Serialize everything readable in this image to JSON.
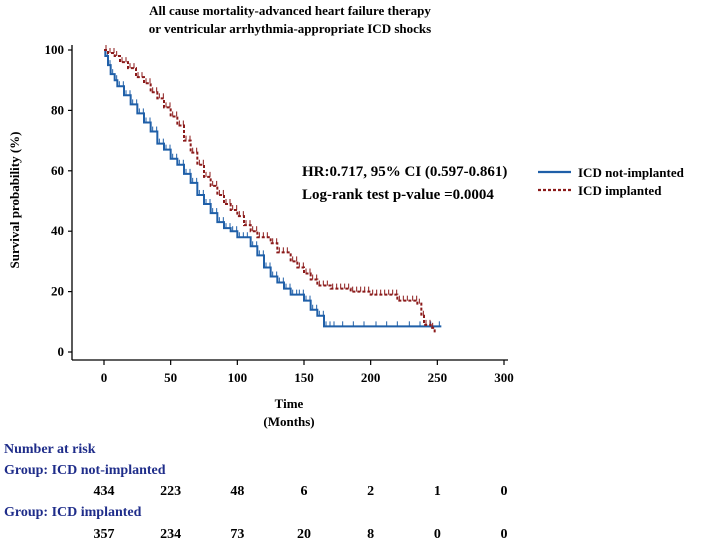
{
  "chart_data": {
    "type": "line",
    "title": "All cause mortality-advanced heart failure therapy",
    "subtitle": "or ventricular arrhythmia-appropriate ICD shocks",
    "xlabel": "Time",
    "xlabel_unit": "(Months)",
    "ylabel": "Survival probability (%)",
    "xlim": [
      0,
      300
    ],
    "ylim": [
      0,
      100
    ],
    "x_ticks": [
      "0",
      "50",
      "100",
      "150",
      "200",
      "250",
      "300"
    ],
    "y_ticks": [
      "0",
      "20",
      "40",
      "60",
      "80",
      "100"
    ],
    "grid": false,
    "legend_position": "right",
    "annotations": {
      "hr": "HR:0.717, 95% CI (0.597-0.861)",
      "logrank": "Log-rank test p-value =0.0004"
    },
    "series": [
      {
        "name": "ICD not-implanted",
        "color": "#1f5fa8",
        "style": "solid",
        "x": [
          0,
          1,
          3,
          5,
          8,
          10,
          15,
          20,
          25,
          30,
          35,
          40,
          45,
          50,
          55,
          60,
          65,
          70,
          75,
          80,
          85,
          90,
          95,
          100,
          110,
          115,
          120,
          125,
          130,
          135,
          140,
          145,
          150,
          155,
          160,
          165,
          175,
          200,
          225,
          250,
          253
        ],
        "y": [
          100,
          98,
          95,
          92,
          90,
          88,
          85,
          82,
          79,
          76,
          73,
          69,
          67,
          64,
          62,
          59,
          56,
          52,
          49,
          46,
          43,
          41,
          40,
          38,
          35,
          32,
          28,
          25,
          23,
          21,
          19,
          19,
          17,
          14,
          12,
          8.5,
          8.5,
          8.5,
          8.5,
          8.5,
          8.5
        ]
      },
      {
        "name": "ICD implanted",
        "color": "#8b1a1a",
        "style": "dashed",
        "x": [
          0,
          3,
          8,
          12,
          18,
          24,
          30,
          35,
          40,
          45,
          50,
          55,
          60,
          65,
          70,
          75,
          80,
          85,
          90,
          95,
          100,
          105,
          110,
          115,
          125,
          130,
          140,
          145,
          150,
          155,
          160,
          170,
          185,
          200,
          215,
          220,
          230,
          235,
          238,
          240,
          245,
          248
        ],
        "y": [
          100,
          99,
          98,
          96,
          94,
          91,
          89,
          86,
          84,
          81,
          78,
          75,
          70,
          66,
          62,
          58,
          55,
          52,
          49,
          47,
          45,
          42,
          40,
          38,
          36,
          33,
          30,
          28,
          26,
          24,
          22,
          21,
          20,
          19,
          19,
          17,
          17,
          16,
          12,
          9,
          8,
          6
        ]
      }
    ],
    "risk_table": {
      "heading": "Number at risk",
      "times": [
        0,
        50,
        100,
        150,
        200,
        250,
        300
      ],
      "groups": [
        {
          "label": "Group: ICD not-implanted",
          "counts": [
            "434",
            "223",
            "48",
            "6",
            "2",
            "1",
            "0"
          ]
        },
        {
          "label": "Group: ICD implanted",
          "counts": [
            "357",
            "234",
            "73",
            "20",
            "8",
            "0",
            "0"
          ]
        }
      ]
    }
  }
}
